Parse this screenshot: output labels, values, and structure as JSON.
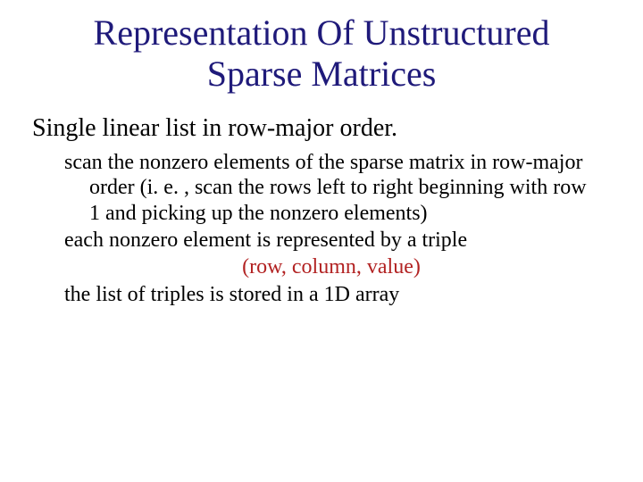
{
  "colors": {
    "title": "#1f1a7a",
    "body": "#000000",
    "highlight": "#b22222",
    "background": "#ffffff"
  },
  "title": {
    "line1": "Representation Of Unstructured",
    "line2": "Sparse Matrices"
  },
  "subtitle": "Single linear list in row-major order.",
  "body": {
    "p1": "scan the nonzero elements of the sparse matrix in row-major order (i. e. , scan the rows left to right beginning with row 1 and picking up the nonzero elements)",
    "p2": "each nonzero element is represented by a triple",
    "triple": "(row, column, value)",
    "p3": "the list of triples is stored in a 1D array"
  },
  "typography": {
    "title_fontsize": 40,
    "subtitle_fontsize": 28,
    "body_fontsize": 24,
    "font_family": "Times New Roman"
  }
}
